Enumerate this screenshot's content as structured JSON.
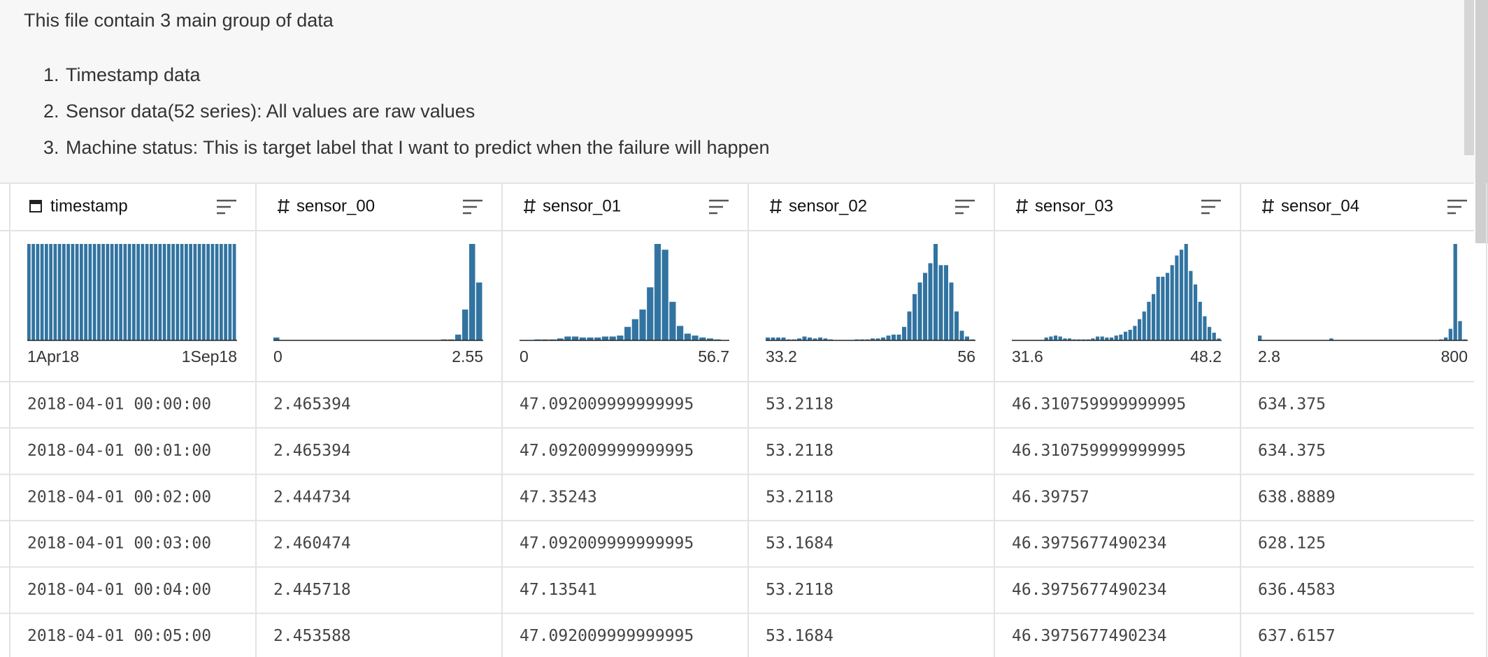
{
  "description": {
    "intro": "This file contain 3 main group of data",
    "items": [
      "Timestamp data",
      "Sensor data(52 series): All values are raw values",
      "Machine status: This is target label that I want to predict when the failure will happen"
    ]
  },
  "table": {
    "columns": [
      {
        "name": "timestamp",
        "kind": "date",
        "histogram": {
          "min_label": "1Apr18",
          "max_label": "1Sep18",
          "counts": [
            100,
            100,
            100,
            100,
            100,
            100,
            100,
            100,
            100,
            100,
            100,
            100,
            100,
            100,
            100,
            100,
            100,
            100,
            100,
            100,
            100,
            100,
            100,
            100,
            100,
            100,
            100,
            100,
            100,
            100,
            100,
            100,
            100,
            100,
            100,
            100,
            100,
            100,
            100,
            100,
            100,
            100,
            100,
            100,
            100,
            100,
            100,
            100
          ]
        }
      },
      {
        "name": "sensor_00",
        "kind": "number",
        "histogram": {
          "min_label": "0",
          "max_label": "2.55",
          "counts": [
            3,
            0,
            0,
            0,
            0,
            0,
            0,
            0,
            0,
            0,
            0,
            0,
            0,
            0,
            0,
            0,
            0,
            0,
            0,
            0,
            0,
            0,
            0,
            0,
            1,
            1,
            6,
            32,
            100,
            60
          ]
        }
      },
      {
        "name": "sensor_01",
        "kind": "number",
        "histogram": {
          "min_label": "0",
          "max_label": "56.7",
          "counts": [
            0,
            0,
            1,
            1,
            1,
            2,
            4,
            4,
            3,
            3,
            3,
            4,
            4,
            5,
            14,
            22,
            32,
            55,
            100,
            94,
            40,
            15,
            7,
            5,
            3,
            2,
            1,
            0
          ]
        }
      },
      {
        "name": "sensor_02",
        "kind": "number",
        "histogram": {
          "min_label": "33.2",
          "max_label": "56",
          "counts": [
            3,
            3,
            3,
            3,
            1,
            1,
            2,
            4,
            3,
            2,
            3,
            2,
            1,
            0,
            0,
            0,
            0,
            1,
            1,
            1,
            2,
            2,
            3,
            5,
            6,
            6,
            14,
            30,
            48,
            60,
            70,
            80,
            100,
            78,
            78,
            60,
            30,
            10,
            4,
            1
          ]
        }
      },
      {
        "name": "sensor_03",
        "kind": "number",
        "histogram": {
          "min_label": "31.6",
          "max_label": "48.2",
          "counts": [
            0,
            0,
            0,
            0,
            0,
            0,
            0,
            3,
            4,
            5,
            4,
            2,
            2,
            1,
            1,
            1,
            1,
            2,
            4,
            4,
            3,
            3,
            5,
            6,
            9,
            11,
            15,
            22,
            30,
            40,
            48,
            66,
            66,
            70,
            78,
            88,
            94,
            100,
            72,
            58,
            40,
            25,
            14,
            8,
            2
          ]
        }
      },
      {
        "name": "sensor_04",
        "kind": "number",
        "histogram": {
          "min_label": "2.8",
          "max_label": "800",
          "counts": [
            5,
            0,
            0,
            0,
            0,
            0,
            0,
            0,
            0,
            0,
            0,
            0,
            0,
            0,
            0,
            2,
            0,
            0,
            0,
            0,
            0,
            0,
            0,
            0,
            0,
            0,
            0,
            0,
            0,
            0,
            0,
            0,
            0,
            0,
            0,
            0,
            0,
            0,
            1,
            3,
            12,
            100,
            20,
            1
          ]
        }
      }
    ],
    "rows": [
      [
        "2018-04-01 00:00:00",
        "2.465394",
        "47.092009999999995",
        "53.2118",
        "46.310759999999995",
        "634.375"
      ],
      [
        "2018-04-01 00:01:00",
        "2.465394",
        "47.092009999999995",
        "53.2118",
        "46.310759999999995",
        "634.375"
      ],
      [
        "2018-04-01 00:02:00",
        "2.444734",
        "47.35243",
        "53.2118",
        "46.39757",
        "638.8889"
      ],
      [
        "2018-04-01 00:03:00",
        "2.460474",
        "47.092009999999995",
        "53.1684",
        "46.3975677490234",
        "628.125"
      ],
      [
        "2018-04-01 00:04:00",
        "2.445718",
        "47.13541",
        "53.2118",
        "46.3975677490234",
        "636.4583"
      ],
      [
        "2018-04-01 00:05:00",
        "2.453588",
        "47.092009999999995",
        "53.1684",
        "46.3975677490234",
        "637.6157"
      ]
    ]
  }
}
